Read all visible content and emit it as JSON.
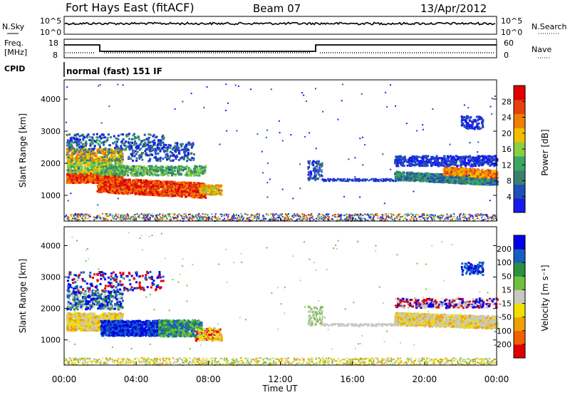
{
  "header": {
    "title": "Fort Hays East (fitACF)",
    "beam": "Beam 07",
    "date": "13/Apr/2012"
  },
  "noise_panel": {
    "left_label": "N.Sky",
    "right_label": "N.Search",
    "left_ticks": [
      "10^5",
      "10^0"
    ],
    "right_ticks": [
      "10^5",
      "10^0"
    ]
  },
  "freq_panel": {
    "left_label_1": "Freq.",
    "left_label_2": "[MHz]",
    "right_label": "Nave",
    "left_ticks": [
      "18",
      "8"
    ],
    "right_ticks": [
      "60",
      "0"
    ],
    "cpid_label": "CPID",
    "cpid_text": "normal (fast) 151 IF"
  },
  "colors": {
    "power_scale": [
      "#1a1aee",
      "#1f4fb8",
      "#3a8070",
      "#3aa860",
      "#88d040",
      "#f0c000",
      "#f08000",
      "#e84010",
      "#e00000"
    ],
    "velocity_scale": [
      "#0000e8",
      "#1460c0",
      "#2a9040",
      "#70c040",
      "#c8c8c0",
      "#f0e000",
      "#f0a000",
      "#f06000",
      "#e00000"
    ]
  },
  "chart_data": [
    {
      "type": "heatmap",
      "name": "power",
      "ylabel": "Slant Range [km]",
      "yticks": [
        "1000",
        "2000",
        "3000",
        "4000"
      ],
      "ylim": [
        200,
        4600
      ],
      "xlim": [
        0,
        24
      ],
      "colorbar": {
        "label": "Power [dB]",
        "ticks": [
          "4",
          "8",
          "12",
          "16",
          "20",
          "24",
          "28"
        ],
        "range": [
          0,
          32
        ]
      }
    },
    {
      "type": "heatmap",
      "name": "velocity",
      "ylabel": "Slant Range [km]",
      "yticks": [
        "1000",
        "2000",
        "3000",
        "4000"
      ],
      "ylim": [
        200,
        4600
      ],
      "xlim": [
        0,
        24
      ],
      "xticks": [
        "00:00",
        "04:00",
        "08:00",
        "12:00",
        "16:00",
        "20:00",
        "00:00"
      ],
      "xlabel": "Time UT",
      "colorbar": {
        "label": "Velocity [m s⁻¹]",
        "ticks": [
          "200",
          "100",
          "50",
          "15",
          "-15",
          "-50",
          "-100",
          "-200"
        ]
      }
    }
  ]
}
